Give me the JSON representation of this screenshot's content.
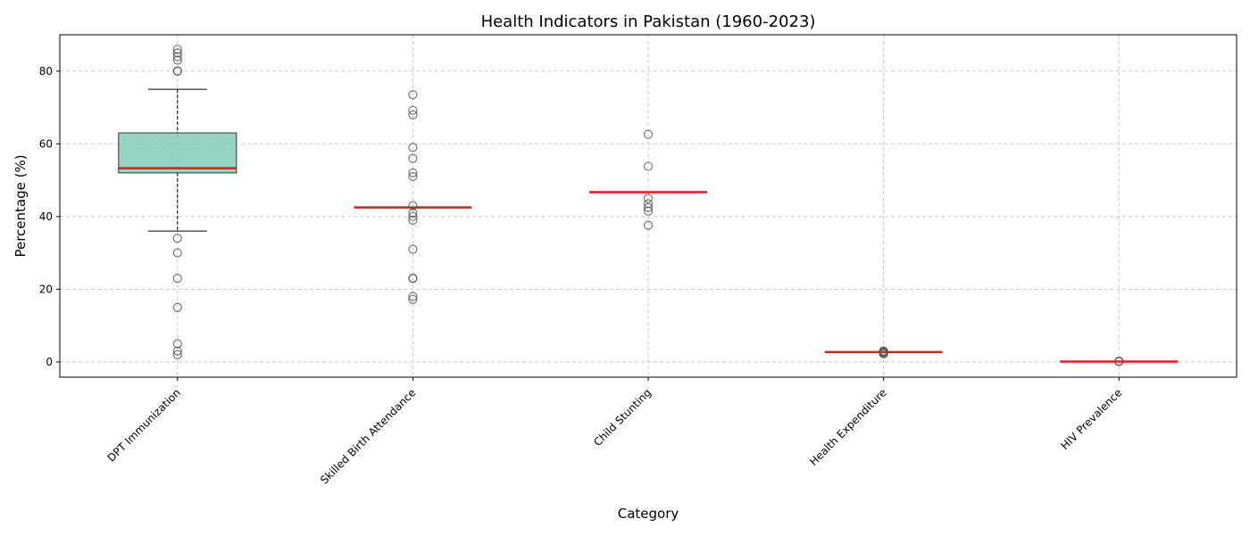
{
  "chart_data": {
    "type": "box",
    "title": "Health Indicators in Pakistan (1960-2023)",
    "xlabel": "Category",
    "ylabel": "Percentage (%)",
    "ylim": [
      -4.2,
      90
    ],
    "yticks": [
      0,
      20,
      40,
      60,
      80
    ],
    "grid": true,
    "colors": {
      "box_fill": "#66c2a5",
      "median": "#e41a1c",
      "outlier_edge": "#555555",
      "grid": "#c8c8c8"
    },
    "categories": [
      "DPT Immunization",
      "Skilled Birth Attendance",
      "Child Stunting",
      "Health Expenditure",
      "HIV Prevalence"
    ],
    "boxes": [
      {
        "category": "DPT Immunization",
        "whisker_low": 36,
        "q1": 52,
        "median": 53.3,
        "q3": 63,
        "whisker_high": 75,
        "outliers": [
          2,
          3,
          5,
          15,
          23,
          30,
          34,
          80,
          80,
          83,
          84,
          85,
          86
        ]
      },
      {
        "category": "Skilled Birth Attendance",
        "whisker_low": 42.5,
        "q1": 42.5,
        "median": 42.5,
        "q3": 42.5,
        "whisker_high": 42.5,
        "outliers": [
          17.2,
          18,
          23,
          23,
          31,
          39,
          40,
          41,
          43,
          51,
          52,
          56,
          59,
          68,
          69.2,
          73.5
        ]
      },
      {
        "category": "Child Stunting",
        "whisker_low": 46.7,
        "q1": 46.7,
        "median": 46.7,
        "q3": 46.7,
        "whisker_high": 46.7,
        "outliers": [
          37.6,
          41.5,
          42.5,
          43.5,
          45,
          53.8,
          62.6
        ]
      },
      {
        "category": "Health Expenditure",
        "whisker_low": 2.7,
        "q1": 2.7,
        "median": 2.7,
        "q3": 2.7,
        "whisker_high": 2.7,
        "outliers": [
          2.2,
          2.4,
          2.6,
          2.8,
          2.9,
          3.0
        ]
      },
      {
        "category": "HIV Prevalence",
        "whisker_low": 0.1,
        "q1": 0.1,
        "median": 0.1,
        "q3": 0.1,
        "whisker_high": 0.1,
        "outliers": [
          0.1,
          0.2,
          0.2
        ]
      }
    ]
  }
}
